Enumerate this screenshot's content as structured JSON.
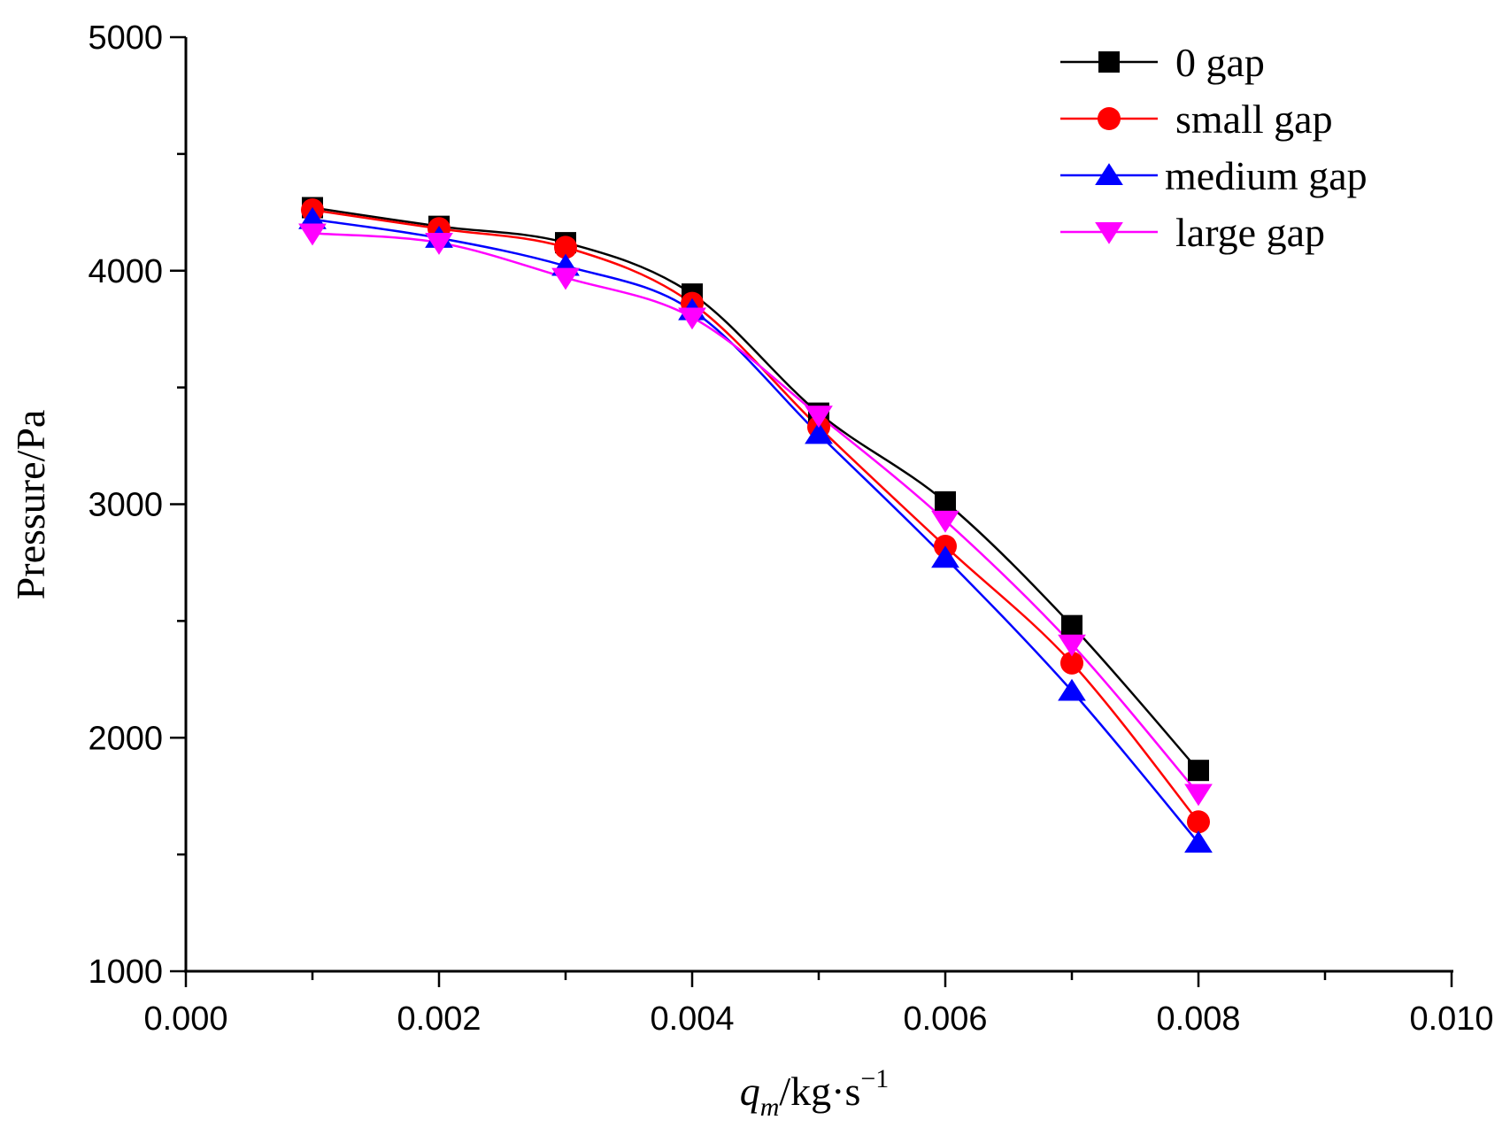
{
  "chart_data": {
    "type": "line",
    "title": "",
    "xlabel": {
      "main": "q",
      "sub": "m",
      "unit": "/kg·s",
      "sup": "−1"
    },
    "ylabel": "Pressure/Pa",
    "xlim": [
      0.0,
      0.01
    ],
    "ylim": [
      1000,
      5000
    ],
    "x_ticks": [
      "0.000",
      "0.002",
      "0.004",
      "0.006",
      "0.008",
      "0.010"
    ],
    "y_ticks": [
      "1000",
      "2000",
      "3000",
      "4000",
      "5000"
    ],
    "x_tick_values": [
      0.0,
      0.002,
      0.004,
      0.006,
      0.008,
      0.01
    ],
    "y_tick_values": [
      1000,
      2000,
      3000,
      4000,
      5000
    ],
    "x_minor_step": 0.001,
    "y_minor_step": 500,
    "legend_position": "top-right",
    "x": [
      0.001,
      0.002,
      0.003,
      0.004,
      0.005,
      0.006,
      0.007,
      0.008
    ],
    "series": [
      {
        "name": "0 gap",
        "color": "#000000",
        "marker": "square",
        "values": [
          4270,
          4190,
          4120,
          3900,
          3390,
          3010,
          2480,
          1860
        ]
      },
      {
        "name": "small gap",
        "color": "#ff0000",
        "marker": "circle",
        "values": [
          4260,
          4180,
          4100,
          3860,
          3330,
          2820,
          2320,
          1640
        ]
      },
      {
        "name": "medium gap",
        "color": "#0000ff",
        "marker": "triangle-up",
        "values": [
          4220,
          4140,
          4020,
          3830,
          3300,
          2770,
          2200,
          1550
        ]
      },
      {
        "name": "large gap",
        "color": "#ff00ff",
        "marker": "triangle-down",
        "values": [
          4160,
          4120,
          3970,
          3800,
          3380,
          2930,
          2400,
          1760
        ]
      }
    ]
  }
}
